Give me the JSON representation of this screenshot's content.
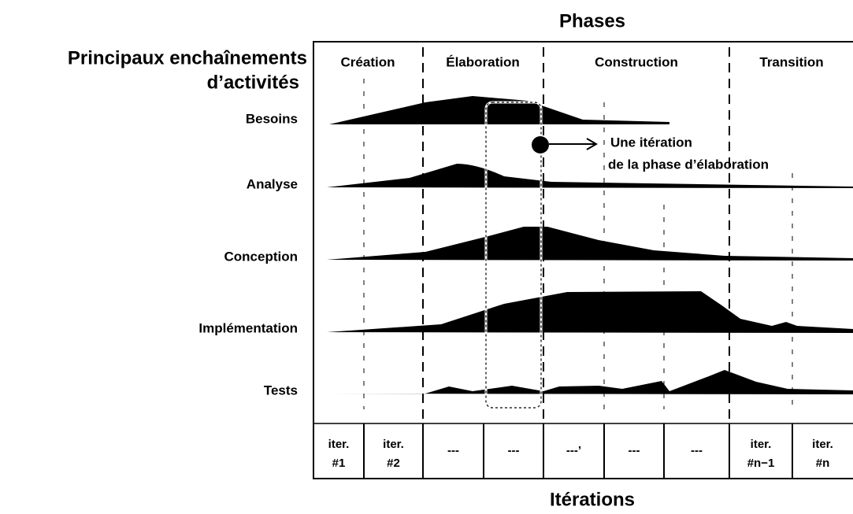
{
  "title": "Phases",
  "workflows_heading": [
    "Principaux enchaînements",
    "d’activités"
  ],
  "phases": [
    "Création",
    "Élaboration",
    "Construction",
    "Transition"
  ],
  "workflows": [
    "Besoins",
    "Analyse",
    "Conception",
    "Implémentation",
    "Tests"
  ],
  "annotation": [
    "Une itération",
    "de la phase d’élaboration"
  ],
  "iterations": [
    [
      "iter.",
      "#1"
    ],
    [
      "iter.",
      "#2"
    ],
    [
      "---"
    ],
    [
      "---"
    ],
    [
      "---’"
    ],
    [
      "---"
    ],
    [
      "---"
    ],
    [
      "iter.",
      "#n−1"
    ],
    [
      "iter.",
      "#n"
    ]
  ],
  "footer": "Itérations"
}
